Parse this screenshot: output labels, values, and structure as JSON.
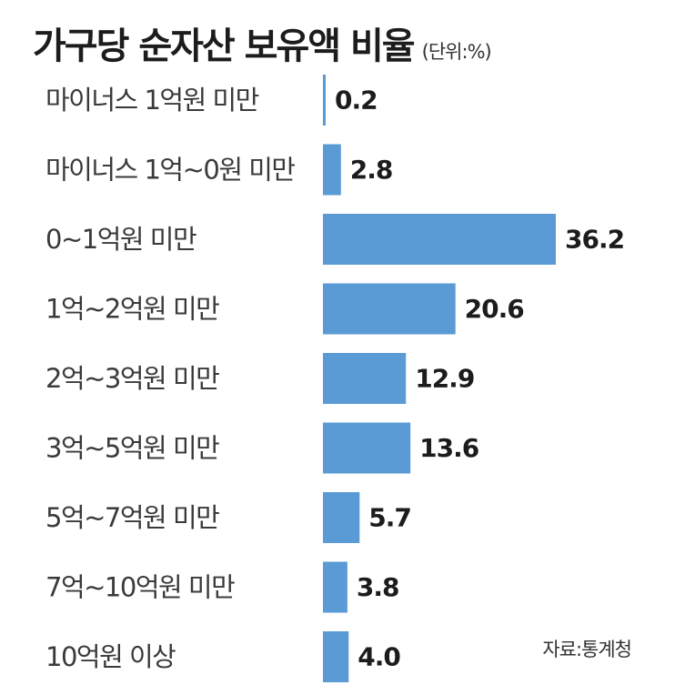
{
  "header": {
    "title": "가구당 순자산 보유액 비율",
    "unit": "(단위:%)"
  },
  "source": "자료:통계청",
  "chart_data": {
    "type": "bar",
    "orientation": "horizontal",
    "title": "가구당 순자산 보유액 비율",
    "unit": "(단위:%)",
    "categories": [
      "마이너스 1억원 미만",
      "마이너스 1억~0원 미만",
      "0~1억원 미만",
      "1억~2억원 미만",
      "2억~3억원 미만",
      "3억~5억원 미만",
      "5억~7억원 미만",
      "7억~10억원 미만",
      "10억원 이상"
    ],
    "values": [
      0.2,
      2.8,
      36.2,
      20.6,
      12.9,
      13.6,
      5.7,
      3.8,
      4.0
    ],
    "value_labels": [
      "0.2",
      "2.8",
      "36.2",
      "20.6",
      "12.9",
      "13.6",
      "5.7",
      "3.8",
      "4.0"
    ],
    "xlim": [
      0,
      36.2
    ],
    "bar_color": "#5b9bd5",
    "grid": false,
    "legend": "none",
    "source": "자료:통계청"
  }
}
